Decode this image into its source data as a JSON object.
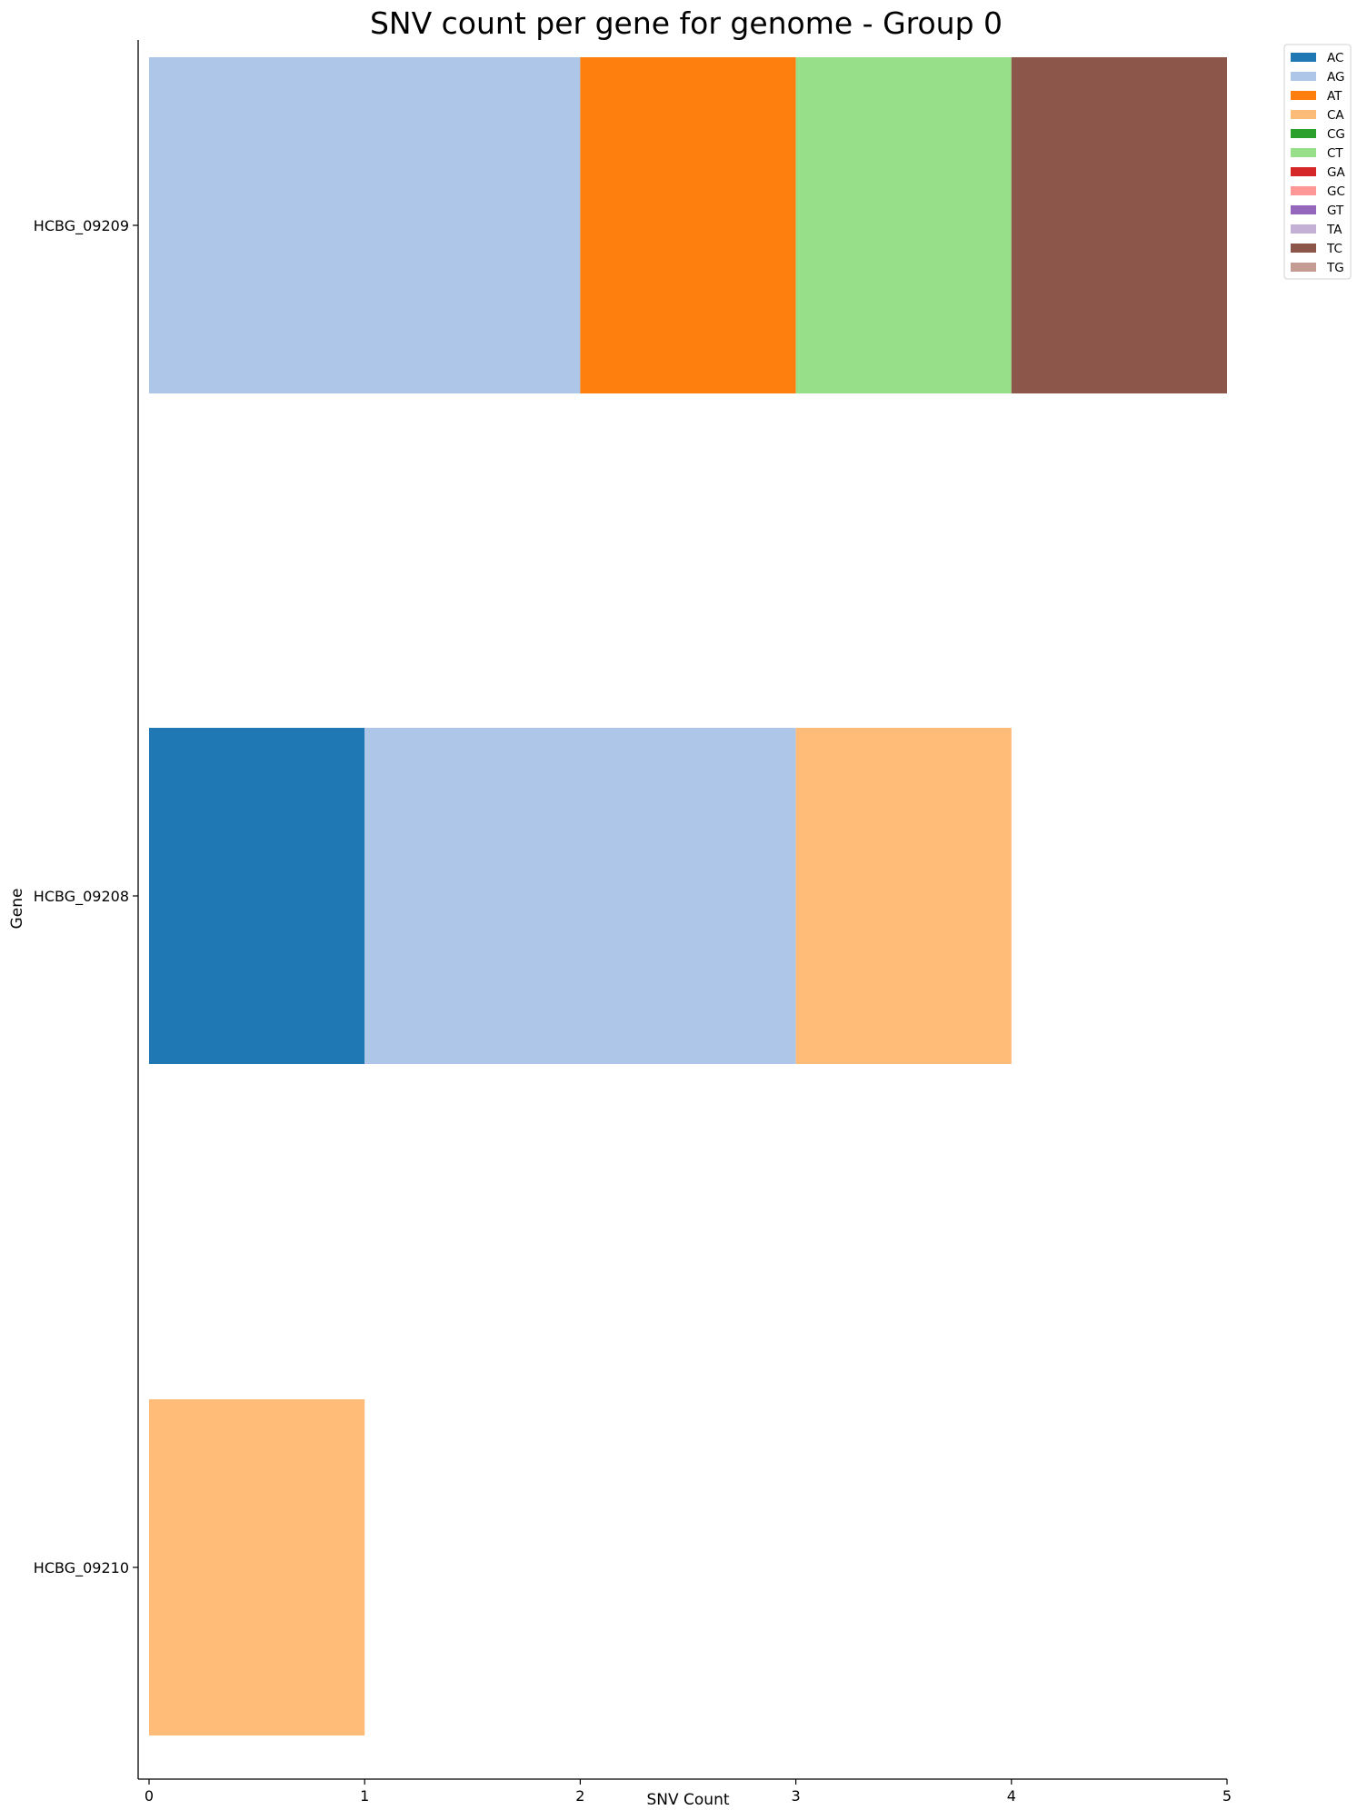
{
  "chart_data": {
    "type": "bar",
    "orientation": "horizontal",
    "stacked": true,
    "title": "SNV count per gene for genome - Group 0",
    "xlabel": "SNV Count",
    "ylabel": "Gene",
    "xlim": [
      0,
      5
    ],
    "x_ticks": [
      "0",
      "1",
      "2",
      "3",
      "4",
      "5"
    ],
    "categories": [
      "HCBG_09209",
      "HCBG_09208",
      "HCBG_09210"
    ],
    "series": [
      {
        "name": "AC",
        "color": "#1f77b4",
        "values": [
          0,
          1,
          0
        ]
      },
      {
        "name": "AG",
        "color": "#aec7e8",
        "values": [
          2,
          2,
          0
        ]
      },
      {
        "name": "AT",
        "color": "#ff7f0e",
        "values": [
          1,
          0,
          0
        ]
      },
      {
        "name": "CA",
        "color": "#ffbb78",
        "values": [
          0,
          1,
          1
        ]
      },
      {
        "name": "CG",
        "color": "#2ca02c",
        "values": [
          0,
          0,
          0
        ]
      },
      {
        "name": "CT",
        "color": "#98df8a",
        "values": [
          1,
          0,
          0
        ]
      },
      {
        "name": "GA",
        "color": "#d62728",
        "values": [
          0,
          0,
          0
        ]
      },
      {
        "name": "GC",
        "color": "#ff9896",
        "values": [
          0,
          0,
          0
        ]
      },
      {
        "name": "GT",
        "color": "#9467bd",
        "values": [
          0,
          0,
          0
        ]
      },
      {
        "name": "TA",
        "color": "#c5b0d5",
        "values": [
          0,
          0,
          0
        ]
      },
      {
        "name": "TC",
        "color": "#8c564b",
        "values": [
          1,
          0,
          0
        ]
      },
      {
        "name": "TG",
        "color": "#c49c94",
        "values": [
          0,
          0,
          0
        ]
      }
    ],
    "legend_position": "outside-top-right",
    "grid": false
  }
}
